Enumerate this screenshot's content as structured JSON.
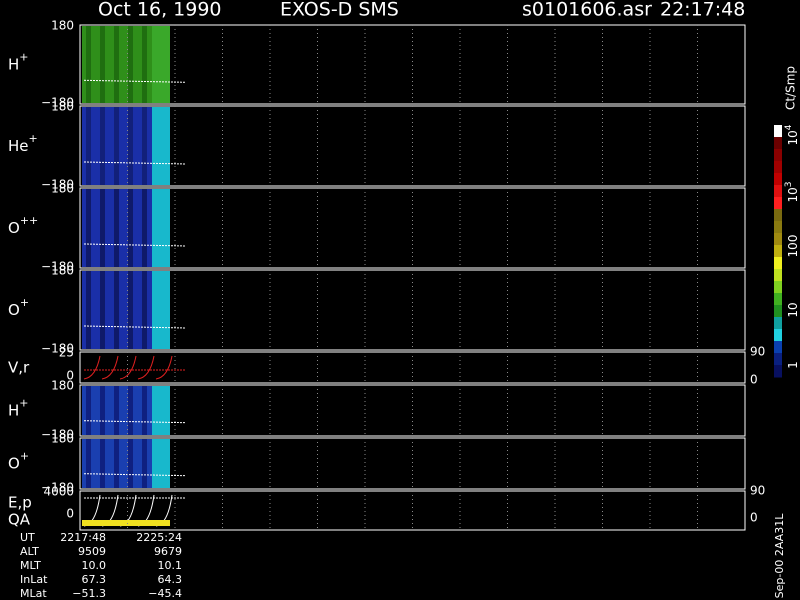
{
  "header": {
    "date": "Oct 16, 1990",
    "instrument": "EXOS-D SMS",
    "file": "s0101606.asr",
    "time": "22:17:48"
  },
  "panels": [
    {
      "species": "H",
      "charge": "+",
      "top": "180",
      "bottom": "−180"
    },
    {
      "species": "He",
      "charge": "+",
      "top": "180",
      "bottom": "−180"
    },
    {
      "species": "O",
      "charge": "++",
      "top": "180",
      "bottom": "−180"
    },
    {
      "species": "O",
      "charge": "+",
      "top": "180",
      "bottom": "−180"
    },
    {
      "species": "V,r",
      "top": "25",
      "bottom": "0",
      "right_top": "90",
      "right_bottom": "0"
    },
    {
      "species": "H",
      "charge": "+",
      "top": "180",
      "bottom": "−180"
    },
    {
      "species": "O",
      "charge": "+",
      "top": "180",
      "bottom": "−180"
    },
    {
      "species": "E,p",
      "second": "QA",
      "top": "4000",
      "bottom": "0",
      "right_top": "90",
      "right_bottom": "0"
    }
  ],
  "colorbar": {
    "title": "Ct/Smp",
    "labels": [
      {
        "base": "10",
        "exp": "4"
      },
      {
        "base": "10",
        "exp": "3"
      },
      {
        "base": "100"
      },
      {
        "base": "10"
      },
      {
        "base": "1"
      }
    ]
  },
  "table": {
    "rows": [
      [
        "UT",
        "2217:48",
        "2225:24"
      ],
      [
        "ALT",
        "9509",
        "9679"
      ],
      [
        "MLT",
        "10.0",
        "10.1"
      ],
      [
        "InLat",
        "67.3",
        "64.3"
      ],
      [
        "MLat",
        "−51.3",
        "−45.4"
      ]
    ]
  },
  "footer": "Sep-00 2AA31L"
}
